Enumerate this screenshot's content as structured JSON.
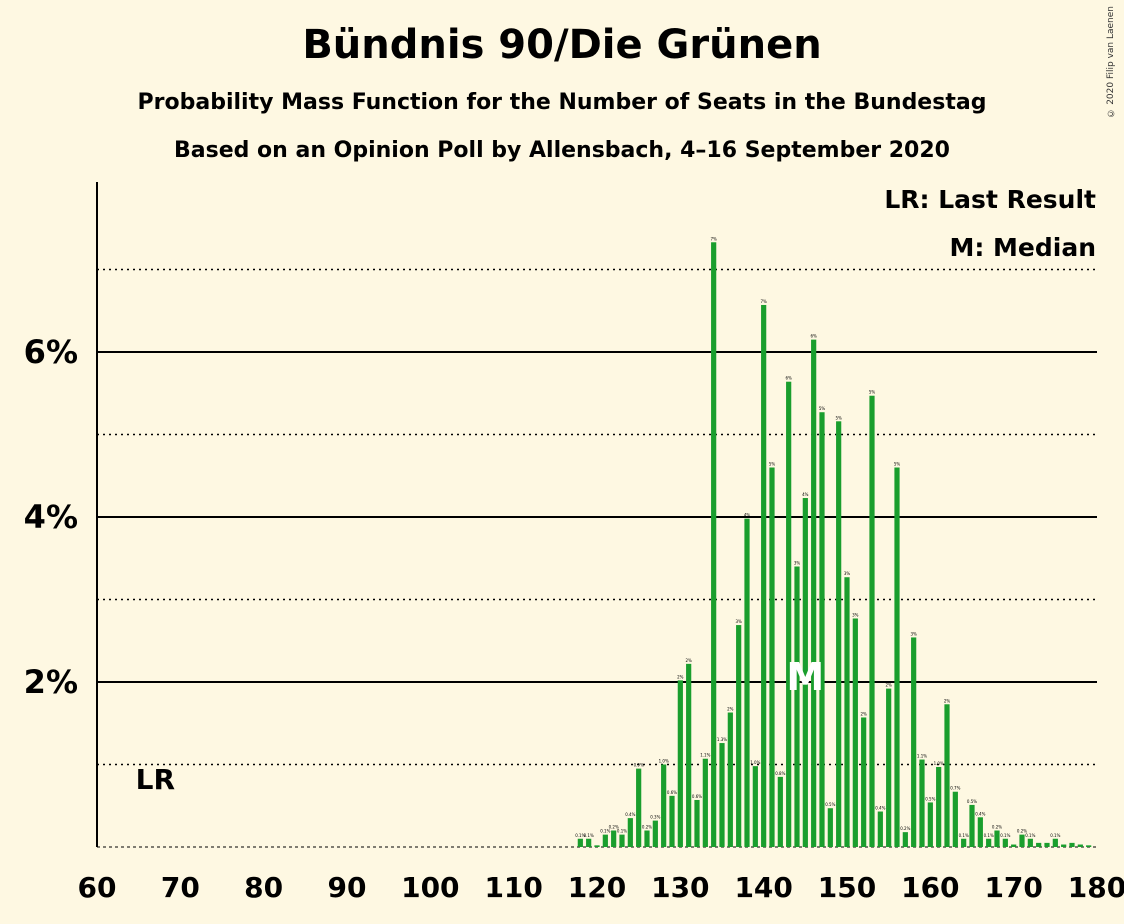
{
  "chart_data": {
    "type": "bar",
    "title": "Bündnis 90/Die Grünen",
    "subtitle": "Probability Mass Function for the Number of Seats in the Bundestag",
    "subtitle2": "Based on an Opinion Poll by Allensbach, 4–16 September 2020",
    "copyright": "© 2020 Filip van Laenen",
    "legend": [
      "LR: Last Result",
      "M: Median"
    ],
    "last_result_label": "LR",
    "last_result_seats": 67,
    "median_label": "M",
    "median_seats": 145,
    "xlim": [
      60,
      180
    ],
    "ylim": [
      0,
      8
    ],
    "x_ticks": [
      60,
      70,
      80,
      90,
      100,
      110,
      120,
      130,
      140,
      150,
      160,
      170,
      180
    ],
    "y_ticks": [
      {
        "value": 2,
        "label": "2%"
      },
      {
        "value": 4,
        "label": "4%"
      },
      {
        "value": 6,
        "label": "6%"
      }
    ],
    "dotted_gridlines": [
      1,
      3,
      5,
      7
    ],
    "bar_color": "#1a9e2d",
    "x": [
      118,
      119,
      120,
      121,
      122,
      123,
      124,
      125,
      126,
      127,
      128,
      129,
      130,
      131,
      132,
      133,
      134,
      135,
      136,
      137,
      138,
      139,
      140,
      141,
      142,
      143,
      144,
      145,
      146,
      147,
      148,
      149,
      150,
      151,
      152,
      153,
      154,
      155,
      156,
      157,
      158,
      159,
      160,
      161,
      162,
      163,
      164,
      165,
      166,
      167,
      168,
      169,
      170,
      171,
      172,
      173,
      174,
      175,
      176,
      177,
      178,
      179
    ],
    "values": [
      0.1,
      0.1,
      0.02,
      0.15,
      0.2,
      0.15,
      0.35,
      0.95,
      0.2,
      0.32,
      1.0,
      0.62,
      2.02,
      2.22,
      0.57,
      1.07,
      7.33,
      1.26,
      1.63,
      2.69,
      3.98,
      0.98,
      6.57,
      4.6,
      0.85,
      5.64,
      3.4,
      4.23,
      6.15,
      5.27,
      0.47,
      5.16,
      3.27,
      2.77,
      1.57,
      5.47,
      0.43,
      1.92,
      4.6,
      0.18,
      2.54,
      1.06,
      0.54,
      0.97,
      1.73,
      0.67,
      0.1,
      0.51,
      0.36,
      0.1,
      0.2,
      0.1,
      0.03,
      0.15,
      0.1,
      0.05,
      0.05,
      0.1,
      0.03,
      0.05,
      0.03,
      0.02
    ],
    "value_labels": [
      "0.1%",
      "0.1%",
      "",
      "0.1%",
      "0.2%",
      "0.1%",
      "0.4%",
      "0.9%",
      "0.2%",
      "0.3%",
      "1.0%",
      "0.6%",
      "2%",
      "2%",
      "0.6%",
      "1.1%",
      "7%",
      "1.3%",
      "2%",
      "3%",
      "4%",
      "1.0%",
      "7%",
      "5%",
      "0.8%",
      "6%",
      "3%",
      "4%",
      "6%",
      "5%",
      "0.5%",
      "5%",
      "3%",
      "3%",
      "2%",
      "5%",
      "0.4%",
      "2%",
      "5%",
      "0.2%",
      "3%",
      "1.1%",
      "0.5%",
      "1.0%",
      "2%",
      "0.7%",
      "0.1%",
      "0.5%",
      "0.4%",
      "0.1%",
      "0.2%",
      "0.1%",
      "",
      "0.2%",
      "0.1%",
      "",
      "",
      "0.1%",
      "",
      "",
      "",
      ""
    ]
  }
}
